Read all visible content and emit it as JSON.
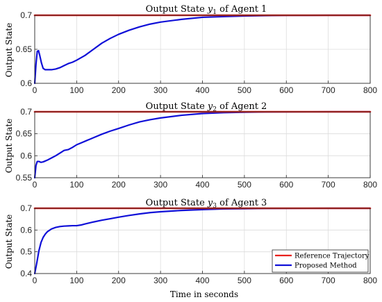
{
  "chart_data": [
    {
      "type": "line",
      "title_prefix": "Output State ",
      "title_var": "y",
      "title_sub": "1",
      "title_suffix": " of Agent 1",
      "xlabel": "",
      "ylabel": "Output State",
      "xlim": [
        0,
        800
      ],
      "ylim": [
        0.6,
        0.7
      ],
      "xticks": [
        0,
        100,
        200,
        300,
        400,
        500,
        600,
        700,
        800
      ],
      "yticks": [
        0.6,
        0.65,
        0.7
      ],
      "ytick_labels": [
        "0.6",
        "0.65",
        "0.7"
      ],
      "grid": true,
      "series": [
        {
          "name": "Reference Trajectory",
          "color": "#e8201c",
          "x": [
            0,
            800
          ],
          "y": [
            0.7,
            0.7
          ]
        },
        {
          "name": "Proposed Method",
          "color": "#1010d8",
          "x": [
            0,
            3,
            6,
            9,
            12,
            16,
            20,
            25,
            30,
            40,
            50,
            60,
            70,
            80,
            90,
            100,
            120,
            140,
            160,
            180,
            200,
            225,
            250,
            275,
            300,
            350,
            400,
            450,
            500,
            550,
            600,
            650,
            700,
            800
          ],
          "y": [
            0.6,
            0.628,
            0.647,
            0.648,
            0.641,
            0.63,
            0.622,
            0.62,
            0.62,
            0.62,
            0.621,
            0.623,
            0.626,
            0.629,
            0.631,
            0.634,
            0.641,
            0.65,
            0.659,
            0.666,
            0.672,
            0.678,
            0.683,
            0.687,
            0.69,
            0.694,
            0.697,
            0.698,
            0.699,
            0.6995,
            0.6998,
            0.6999,
            0.7,
            0.7
          ]
        }
      ]
    },
    {
      "type": "line",
      "title_prefix": "Output State ",
      "title_var": "y",
      "title_sub": "2",
      "title_suffix": " of Agent 2",
      "xlabel": "",
      "ylabel": "Output State",
      "xlim": [
        0,
        800
      ],
      "ylim": [
        0.55,
        0.7
      ],
      "xticks": [
        0,
        100,
        200,
        300,
        400,
        500,
        600,
        700,
        800
      ],
      "yticks": [
        0.55,
        0.6,
        0.65,
        0.7
      ],
      "ytick_labels": [
        "0.55",
        "0.6",
        "0.65",
        "0.7"
      ],
      "grid": true,
      "series": [
        {
          "name": "Reference Trajectory",
          "color": "#e8201c",
          "x": [
            0,
            800
          ],
          "y": [
            0.7,
            0.7
          ]
        },
        {
          "name": "Proposed Method",
          "color": "#1010d8",
          "x": [
            0,
            3,
            6,
            10,
            15,
            20,
            25,
            30,
            40,
            50,
            60,
            70,
            80,
            90,
            100,
            110,
            120,
            140,
            160,
            180,
            200,
            225,
            250,
            275,
            300,
            350,
            400,
            450,
            500,
            550,
            600,
            650,
            700,
            800
          ],
          "y": [
            0.55,
            0.578,
            0.587,
            0.587,
            0.585,
            0.586,
            0.588,
            0.59,
            0.595,
            0.6,
            0.606,
            0.612,
            0.614,
            0.619,
            0.625,
            0.629,
            0.633,
            0.641,
            0.649,
            0.656,
            0.662,
            0.67,
            0.677,
            0.682,
            0.686,
            0.692,
            0.696,
            0.698,
            0.699,
            0.6995,
            0.6998,
            0.6999,
            0.7,
            0.7
          ]
        }
      ]
    },
    {
      "type": "line",
      "title_prefix": "Output State ",
      "title_var": "y",
      "title_sub": "3",
      "title_suffix": " of Agent 3",
      "xlabel": "Time in seconds",
      "ylabel": "Output State",
      "xlim": [
        0,
        800
      ],
      "ylim": [
        0.4,
        0.7
      ],
      "xticks": [
        0,
        100,
        200,
        300,
        400,
        500,
        600,
        700,
        800
      ],
      "yticks": [
        0.4,
        0.5,
        0.6,
        0.7
      ],
      "ytick_labels": [
        "0.4",
        "0.5",
        "0.6",
        "0.7"
      ],
      "grid": true,
      "legend": "bottom-right",
      "series": [
        {
          "name": "Reference Trajectory",
          "color": "#e8201c",
          "x": [
            0,
            800
          ],
          "y": [
            0.7,
            0.7
          ]
        },
        {
          "name": "Proposed Method",
          "color": "#1010d8",
          "x": [
            0,
            5,
            10,
            15,
            20,
            25,
            30,
            40,
            50,
            60,
            70,
            80,
            90,
            100,
            110,
            120,
            140,
            160,
            180,
            200,
            225,
            250,
            275,
            300,
            350,
            400,
            450,
            500,
            550,
            600,
            650,
            700,
            800
          ],
          "y": [
            0.4,
            0.45,
            0.505,
            0.543,
            0.566,
            0.581,
            0.592,
            0.605,
            0.612,
            0.616,
            0.618,
            0.619,
            0.62,
            0.62,
            0.623,
            0.628,
            0.637,
            0.645,
            0.652,
            0.659,
            0.667,
            0.674,
            0.68,
            0.684,
            0.69,
            0.694,
            0.697,
            0.698,
            0.699,
            0.6995,
            0.6998,
            0.6999,
            0.7
          ]
        }
      ]
    }
  ]
}
